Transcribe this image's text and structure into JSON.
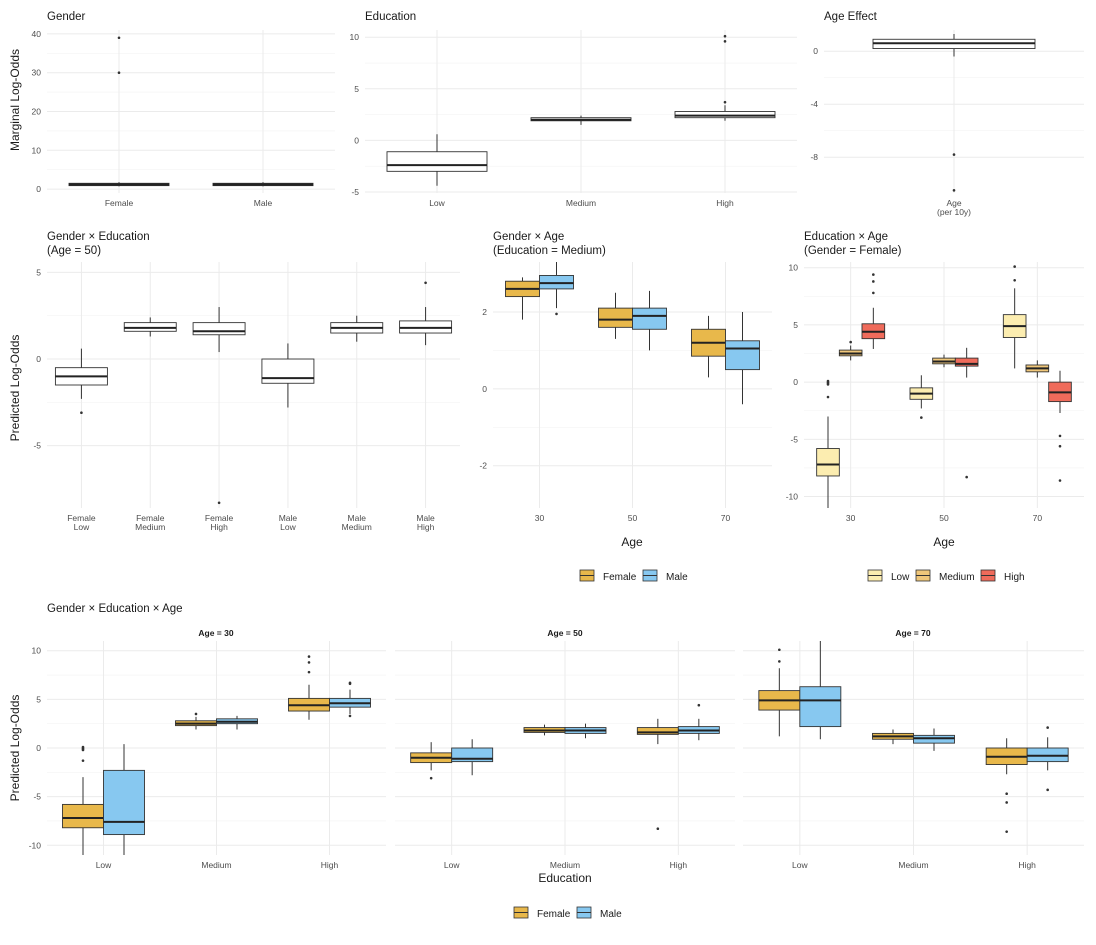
{
  "colors": {
    "female": "#E8B84B",
    "male": "#87C8F0",
    "edu_low": "#FCEDB0",
    "edu_medium": "#F0C77A",
    "edu_high": "#EF6B5B",
    "box_outline": "#333333",
    "grid": "#EBEBEB"
  },
  "chart_data": [
    {
      "id": "gender",
      "type": "boxplot",
      "title": "Gender",
      "ylabel": "Marginal Log-Odds",
      "xlabel": "",
      "categories": [
        "Female",
        "Male"
      ],
      "yticks": [
        0,
        10,
        20,
        30,
        40
      ],
      "ylim": [
        -1,
        41
      ],
      "boxes": [
        {
          "x": "Female",
          "q1": 0.9,
          "median": 1.2,
          "q3": 1.5,
          "lo": 0.7,
          "hi": 1.8,
          "fill": "#ffffff",
          "outliers": [
            30,
            39
          ]
        },
        {
          "x": "Male",
          "q1": 0.9,
          "median": 1.2,
          "q3": 1.5,
          "lo": 0.7,
          "hi": 1.8,
          "fill": "#ffffff",
          "outliers": []
        }
      ]
    },
    {
      "id": "education",
      "type": "boxplot",
      "title": "Education",
      "ylabel": "",
      "xlabel": "",
      "categories": [
        "Low",
        "Medium",
        "High"
      ],
      "yticks": [
        -5,
        0,
        5,
        10
      ],
      "ylim": [
        -5.1,
        10.7
      ],
      "boxes": [
        {
          "x": "Low",
          "q1": -3.0,
          "median": -2.4,
          "q3": -1.1,
          "lo": -4.4,
          "hi": 0.6,
          "fill": "#ffffff",
          "outliers": []
        },
        {
          "x": "Medium",
          "q1": 1.9,
          "median": 2.0,
          "q3": 2.2,
          "lo": 1.5,
          "hi": 2.4,
          "fill": "#ffffff",
          "outliers": []
        },
        {
          "x": "High",
          "q1": 2.2,
          "median": 2.4,
          "q3": 2.8,
          "lo": 1.9,
          "hi": 3.4,
          "fill": "#ffffff",
          "outliers": [
            3.7,
            9.6,
            10.1
          ]
        }
      ]
    },
    {
      "id": "age_effect",
      "type": "boxplot",
      "title": "Age Effect",
      "ylabel": "",
      "xlabel": "",
      "categories": [
        "Age\n(per 10y)"
      ],
      "yticks": [
        -8,
        -4,
        0
      ],
      "ylim": [
        -10.7,
        1.6
      ],
      "boxes": [
        {
          "x": "Age\n(per 10y)",
          "q1": 0.2,
          "median": 0.6,
          "q3": 0.9,
          "lo": -0.4,
          "hi": 1.3,
          "fill": "#ffffff",
          "outliers": [
            -7.8,
            -10.5
          ]
        }
      ]
    },
    {
      "id": "gender_education",
      "type": "boxplot",
      "title": "Gender × Education",
      "subtitle": "(Age = 50)",
      "ylabel": "Predicted Log-Odds",
      "xlabel": "",
      "categories": [
        "Female\nLow",
        "Female\nMedium",
        "Female\nHigh",
        "Male\nLow",
        "Male\nMedium",
        "Male\nHigh"
      ],
      "yticks": [
        -5,
        0,
        5
      ],
      "ylim": [
        -8.6,
        5.6
      ],
      "boxes": [
        {
          "x": "Female\nLow",
          "q1": -1.5,
          "median": -1.0,
          "q3": -0.5,
          "lo": -2.3,
          "hi": 0.6,
          "fill": "#ffffff",
          "outliers": [
            -3.1
          ]
        },
        {
          "x": "Female\nMedium",
          "q1": 1.6,
          "median": 1.8,
          "q3": 2.1,
          "lo": 1.3,
          "hi": 2.4,
          "fill": "#ffffff",
          "outliers": []
        },
        {
          "x": "Female\nHigh",
          "q1": 1.4,
          "median": 1.6,
          "q3": 2.1,
          "lo": 0.4,
          "hi": 3.0,
          "fill": "#ffffff",
          "outliers": [
            -8.3
          ]
        },
        {
          "x": "Male\nLow",
          "q1": -1.4,
          "median": -1.1,
          "q3": 0.0,
          "lo": -2.8,
          "hi": 0.9,
          "fill": "#ffffff",
          "outliers": []
        },
        {
          "x": "Male\nMedium",
          "q1": 1.5,
          "median": 1.8,
          "q3": 2.1,
          "lo": 1.0,
          "hi": 2.5,
          "fill": "#ffffff",
          "outliers": []
        },
        {
          "x": "Male\nHigh",
          "q1": 1.5,
          "median": 1.8,
          "q3": 2.2,
          "lo": 0.8,
          "hi": 3.0,
          "fill": "#ffffff",
          "outliers": [
            4.4
          ]
        }
      ]
    },
    {
      "id": "gender_age",
      "type": "boxplot",
      "title": "Gender × Age",
      "subtitle": "(Education = Medium)",
      "ylabel": "",
      "xlabel": "Age",
      "categories": [
        "30",
        "50",
        "70"
      ],
      "yticks": [
        -2,
        0,
        2
      ],
      "ylim": [
        -3.1,
        3.3
      ],
      "legend": {
        "entries": [
          "Female",
          "Male"
        ],
        "colors": [
          "#E8B84B",
          "#87C8F0"
        ],
        "position": "bottom"
      },
      "groups": [
        {
          "x": "30",
          "boxes": [
            {
              "series": "Female",
              "q1": 2.4,
              "median": 2.6,
              "q3": 2.8,
              "lo": 1.8,
              "hi": 2.9,
              "fill": "#E8B84B",
              "outliers": []
            },
            {
              "series": "Male",
              "q1": 2.6,
              "median": 2.75,
              "q3": 2.95,
              "lo": 2.1,
              "hi": 3.3,
              "fill": "#87C8F0",
              "outliers": [
                1.95
              ]
            }
          ]
        },
        {
          "x": "50",
          "boxes": [
            {
              "series": "Female",
              "q1": 1.6,
              "median": 1.8,
              "q3": 2.1,
              "lo": 1.3,
              "hi": 2.5,
              "fill": "#E8B84B",
              "outliers": []
            },
            {
              "series": "Male",
              "q1": 1.55,
              "median": 1.9,
              "q3": 2.1,
              "lo": 1.0,
              "hi": 2.55,
              "fill": "#87C8F0",
              "outliers": []
            }
          ]
        },
        {
          "x": "70",
          "boxes": [
            {
              "series": "Female",
              "q1": 0.85,
              "median": 1.2,
              "q3": 1.55,
              "lo": 0.3,
              "hi": 1.9,
              "fill": "#E8B84B",
              "outliers": []
            },
            {
              "series": "Male",
              "q1": 0.5,
              "median": 1.05,
              "q3": 1.25,
              "lo": -0.4,
              "hi": 2.0,
              "fill": "#87C8F0",
              "outliers": []
            }
          ]
        }
      ]
    },
    {
      "id": "education_age",
      "type": "boxplot",
      "title": "Education × Age",
      "subtitle": "(Gender = Female)",
      "ylabel": "",
      "xlabel": "Age",
      "categories": [
        "30",
        "50",
        "70"
      ],
      "yticks": [
        -10,
        -5,
        0,
        5,
        10
      ],
      "ylim": [
        -11,
        10.5
      ],
      "legend": {
        "entries": [
          "Low",
          "Medium",
          "High"
        ],
        "colors": [
          "#FCEDB0",
          "#F0C77A",
          "#EF6B5B"
        ],
        "position": "bottom"
      },
      "groups": [
        {
          "x": "30",
          "boxes": [
            {
              "series": "Low",
              "q1": -8.2,
              "median": -7.2,
              "q3": -5.8,
              "lo": -11,
              "hi": -3.0,
              "fill": "#FCEDB0",
              "outliers": [
                -1.3,
                -0.2,
                0.0,
                -0.1,
                0.1
              ]
            },
            {
              "series": "Medium",
              "q1": 2.3,
              "median": 2.5,
              "q3": 2.8,
              "lo": 1.9,
              "hi": 3.2,
              "fill": "#F0C77A",
              "outliers": [
                3.5
              ]
            },
            {
              "series": "High",
              "q1": 3.8,
              "median": 4.4,
              "q3": 5.1,
              "lo": 2.9,
              "hi": 6.5,
              "fill": "#EF6B5B",
              "outliers": [
                7.8,
                8.8,
                9.4
              ]
            }
          ]
        },
        {
          "x": "50",
          "boxes": [
            {
              "series": "Low",
              "q1": -1.5,
              "median": -1.0,
              "q3": -0.5,
              "lo": -2.3,
              "hi": 0.6,
              "fill": "#FCEDB0",
              "outliers": [
                -3.1
              ]
            },
            {
              "series": "Medium",
              "q1": 1.6,
              "median": 1.8,
              "q3": 2.1,
              "lo": 1.3,
              "hi": 2.4,
              "fill": "#F0C77A",
              "outliers": []
            },
            {
              "series": "High",
              "q1": 1.4,
              "median": 1.6,
              "q3": 2.1,
              "lo": 0.4,
              "hi": 3.0,
              "fill": "#EF6B5B",
              "outliers": [
                -8.3
              ]
            }
          ]
        },
        {
          "x": "70",
          "boxes": [
            {
              "series": "Low",
              "q1": 3.9,
              "median": 4.9,
              "q3": 5.9,
              "lo": 1.2,
              "hi": 8.2,
              "fill": "#FCEDB0",
              "outliers": [
                8.9,
                10.1
              ]
            },
            {
              "series": "Medium",
              "q1": 0.9,
              "median": 1.2,
              "q3": 1.5,
              "lo": 0.4,
              "hi": 1.9,
              "fill": "#F0C77A",
              "outliers": []
            },
            {
              "series": "High",
              "q1": -1.7,
              "median": -0.9,
              "q3": 0.0,
              "lo": -2.7,
              "hi": 1.0,
              "fill": "#EF6B5B",
              "outliers": [
                -4.7,
                -5.6,
                -8.6
              ]
            }
          ]
        }
      ]
    },
    {
      "id": "gender_education_age",
      "type": "boxplot",
      "title": "Gender × Education × Age",
      "ylabel": "Predicted Log-Odds",
      "xlabel": "Education",
      "categories": [
        "Low",
        "Medium",
        "High"
      ],
      "yticks": [
        -10,
        -5,
        0,
        5,
        10
      ],
      "ylim": [
        -11,
        11
      ],
      "legend": {
        "entries": [
          "Female",
          "Male"
        ],
        "colors": [
          "#E8B84B",
          "#87C8F0"
        ],
        "position": "bottom"
      },
      "facets": [
        {
          "label": "Age = 30",
          "groups": [
            {
              "x": "Low",
              "boxes": [
                {
                  "series": "Female",
                  "q1": -8.2,
                  "median": -7.2,
                  "q3": -5.8,
                  "lo": -11,
                  "hi": -3.0,
                  "fill": "#E8B84B",
                  "outliers": [
                    -1.3,
                    -0.2,
                    0.0,
                    -0.1,
                    0.1
                  ]
                },
                {
                  "series": "Male",
                  "q1": -8.9,
                  "median": -7.6,
                  "q3": -2.3,
                  "lo": -11,
                  "hi": 0.4,
                  "fill": "#87C8F0",
                  "outliers": []
                }
              ]
            },
            {
              "x": "Medium",
              "boxes": [
                {
                  "series": "Female",
                  "q1": 2.3,
                  "median": 2.5,
                  "q3": 2.8,
                  "lo": 1.9,
                  "hi": 3.2,
                  "fill": "#E8B84B",
                  "outliers": [
                    3.5
                  ]
                },
                {
                  "series": "Male",
                  "q1": 2.5,
                  "median": 2.7,
                  "q3": 3.0,
                  "lo": 1.9,
                  "hi": 3.3,
                  "fill": "#87C8F0",
                  "outliers": []
                }
              ]
            },
            {
              "x": "High",
              "boxes": [
                {
                  "series": "Female",
                  "q1": 3.8,
                  "median": 4.4,
                  "q3": 5.1,
                  "lo": 2.9,
                  "hi": 6.5,
                  "fill": "#E8B84B",
                  "outliers": [
                    7.8,
                    8.8,
                    9.4
                  ]
                },
                {
                  "series": "Male",
                  "q1": 4.2,
                  "median": 4.6,
                  "q3": 5.1,
                  "lo": 3.5,
                  "hi": 6.0,
                  "fill": "#87C8F0",
                  "outliers": [
                    6.6,
                    6.7,
                    3.3
                  ]
                }
              ]
            }
          ]
        },
        {
          "label": "Age = 50",
          "groups": [
            {
              "x": "Low",
              "boxes": [
                {
                  "series": "Female",
                  "q1": -1.5,
                  "median": -1.0,
                  "q3": -0.5,
                  "lo": -2.3,
                  "hi": 0.6,
                  "fill": "#E8B84B",
                  "outliers": [
                    -3.1
                  ]
                },
                {
                  "series": "Male",
                  "q1": -1.4,
                  "median": -1.1,
                  "q3": 0.0,
                  "lo": -2.8,
                  "hi": 0.9,
                  "fill": "#87C8F0",
                  "outliers": []
                }
              ]
            },
            {
              "x": "Medium",
              "boxes": [
                {
                  "series": "Female",
                  "q1": 1.6,
                  "median": 1.8,
                  "q3": 2.1,
                  "lo": 1.3,
                  "hi": 2.4,
                  "fill": "#E8B84B",
                  "outliers": []
                },
                {
                  "series": "Male",
                  "q1": 1.5,
                  "median": 1.8,
                  "q3": 2.1,
                  "lo": 1.0,
                  "hi": 2.5,
                  "fill": "#87C8F0",
                  "outliers": []
                }
              ]
            },
            {
              "x": "High",
              "boxes": [
                {
                  "series": "Female",
                  "q1": 1.4,
                  "median": 1.6,
                  "q3": 2.1,
                  "lo": 0.4,
                  "hi": 3.0,
                  "fill": "#E8B84B",
                  "outliers": [
                    -8.3
                  ]
                },
                {
                  "series": "Male",
                  "q1": 1.5,
                  "median": 1.8,
                  "q3": 2.2,
                  "lo": 0.8,
                  "hi": 3.0,
                  "fill": "#87C8F0",
                  "outliers": [
                    4.4
                  ]
                }
              ]
            }
          ]
        },
        {
          "label": "Age = 70",
          "groups": [
            {
              "x": "Low",
              "boxes": [
                {
                  "series": "Female",
                  "q1": 3.9,
                  "median": 4.9,
                  "q3": 5.9,
                  "lo": 1.2,
                  "hi": 8.2,
                  "fill": "#E8B84B",
                  "outliers": [
                    8.9,
                    10.1
                  ]
                },
                {
                  "series": "Male",
                  "q1": 2.2,
                  "median": 4.9,
                  "q3": 6.3,
                  "lo": 0.9,
                  "hi": 11,
                  "fill": "#87C8F0",
                  "outliers": []
                }
              ]
            },
            {
              "x": "Medium",
              "boxes": [
                {
                  "series": "Female",
                  "q1": 0.9,
                  "median": 1.2,
                  "q3": 1.5,
                  "lo": 0.4,
                  "hi": 1.9,
                  "fill": "#E8B84B",
                  "outliers": []
                },
                {
                  "series": "Male",
                  "q1": 0.5,
                  "median": 1.0,
                  "q3": 1.3,
                  "lo": -0.3,
                  "hi": 2.0,
                  "fill": "#87C8F0",
                  "outliers": []
                }
              ]
            },
            {
              "x": "High",
              "boxes": [
                {
                  "series": "Female",
                  "q1": -1.7,
                  "median": -0.9,
                  "q3": 0.0,
                  "lo": -2.7,
                  "hi": 1.0,
                  "fill": "#E8B84B",
                  "outliers": [
                    -4.7,
                    -5.6,
                    -8.6
                  ]
                },
                {
                  "series": "Male",
                  "q1": -1.4,
                  "median": -0.8,
                  "q3": 0.0,
                  "lo": -2.3,
                  "hi": 1.1,
                  "fill": "#87C8F0",
                  "outliers": [
                    2.1,
                    -4.3
                  ]
                }
              ]
            }
          ]
        }
      ]
    }
  ]
}
